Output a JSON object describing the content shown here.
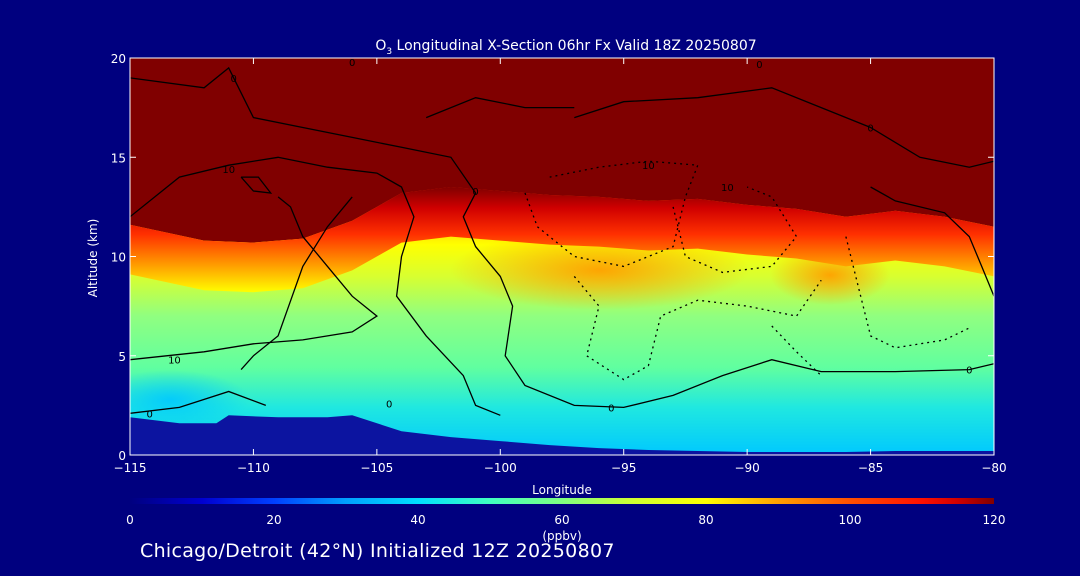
{
  "footer": "Chicago/Detroit (42°N) Initialized 12Z 20250807",
  "colors": {
    "background": "#00007f",
    "terrain": "#0c14a0",
    "contour": "#000000",
    "text": "#ffffff"
  },
  "chart_data": {
    "type": "heatmap",
    "title_prefix": "O",
    "title_subscript": "3",
    "title_rest": " Longitudinal X-Section 06hr  Fx Valid 18Z 20250807",
    "xlabel": "Longitude",
    "ylabel": "Altitude (km)",
    "xlim": [
      -115,
      -80
    ],
    "ylim": [
      0,
      20
    ],
    "xticks": [
      -115,
      -110,
      -105,
      -100,
      -95,
      -90,
      -85,
      -80
    ],
    "xtick_labels": [
      "−115",
      "−110",
      "−105",
      "−100",
      "−95",
      "−90",
      "−85",
      "−80"
    ],
    "yticks": [
      0,
      5,
      10,
      15,
      20
    ],
    "ytick_labels": [
      "0",
      "5",
      "10",
      "15",
      "20"
    ],
    "colorbar": {
      "label": "(ppbv)",
      "min": 0,
      "max": 120,
      "ticks": [
        0,
        20,
        40,
        60,
        80,
        100,
        120
      ],
      "tick_labels": [
        "0",
        "20",
        "40",
        "60",
        "80",
        "100",
        "120"
      ],
      "stops": [
        {
          "value": 0,
          "color": "#00007f"
        },
        {
          "value": 10,
          "color": "#0000d0"
        },
        {
          "value": 20,
          "color": "#0040ff"
        },
        {
          "value": 30,
          "color": "#00a0ff"
        },
        {
          "value": 40,
          "color": "#00e0ff"
        },
        {
          "value": 50,
          "color": "#40ffc0"
        },
        {
          "value": 60,
          "color": "#80ff80"
        },
        {
          "value": 70,
          "color": "#d0ff30"
        },
        {
          "value": 80,
          "color": "#ffff00"
        },
        {
          "value": 90,
          "color": "#ffa000"
        },
        {
          "value": 100,
          "color": "#ff5000"
        },
        {
          "value": 110,
          "color": "#ff1000"
        },
        {
          "value": 115,
          "color": "#d00000"
        },
        {
          "value": 120,
          "color": "#800000"
        }
      ]
    },
    "tropopause_km": [
      [
        -115,
        11.6
      ],
      [
        -112,
        10.8
      ],
      [
        -110,
        10.7
      ],
      [
        -108,
        10.9
      ],
      [
        -106,
        11.8
      ],
      [
        -104,
        13.2
      ],
      [
        -102,
        13.5
      ],
      [
        -100,
        13.3
      ],
      [
        -98,
        13.1
      ],
      [
        -96,
        13.0
      ],
      [
        -94,
        12.8
      ],
      [
        -92,
        12.9
      ],
      [
        -90,
        12.6
      ],
      [
        -88,
        12.4
      ],
      [
        -86,
        12.0
      ],
      [
        -84,
        12.3
      ],
      [
        -82,
        12.0
      ],
      [
        -80,
        11.5
      ]
    ],
    "terrain_km": [
      [
        -115,
        1.9
      ],
      [
        -113,
        1.6
      ],
      [
        -111.5,
        1.6
      ],
      [
        -111,
        2.0
      ],
      [
        -109,
        1.9
      ],
      [
        -107,
        1.9
      ],
      [
        -106,
        2.0
      ],
      [
        -104,
        1.2
      ],
      [
        -102,
        0.9
      ],
      [
        -100,
        0.7
      ],
      [
        -98,
        0.5
      ],
      [
        -96,
        0.35
      ],
      [
        -94,
        0.25
      ],
      [
        -92,
        0.2
      ],
      [
        -90,
        0.15
      ],
      [
        -88,
        0.15
      ],
      [
        -86,
        0.15
      ],
      [
        -84,
        0.2
      ],
      [
        -82,
        0.2
      ],
      [
        -80,
        0.2
      ]
    ],
    "contour_labels": [
      {
        "text": "10",
        "lon": -113.2,
        "alt": 4.8
      },
      {
        "text": "0",
        "lon": -114.2,
        "alt": 2.1
      },
      {
        "text": "10",
        "lon": -111,
        "alt": 14.4
      },
      {
        "text": "0",
        "lon": -95.5,
        "alt": 2.4
      },
      {
        "text": "10",
        "lon": -94,
        "alt": 14.6
      },
      {
        "text": "10",
        "lon": -90.8,
        "alt": 13.5
      },
      {
        "text": "0",
        "lon": -85,
        "alt": 16.5
      },
      {
        "text": "0",
        "lon": -81,
        "alt": 4.3
      },
      {
        "text": "0",
        "lon": -89.5,
        "alt": 19.7
      },
      {
        "text": "0",
        "lon": -106,
        "alt": 19.8
      },
      {
        "text": "0",
        "lon": -110.8,
        "alt": 19.0
      },
      {
        "text": "0",
        "lon": -104.5,
        "alt": 2.6
      },
      {
        "text": "0",
        "lon": -101,
        "alt": 13.3
      }
    ]
  }
}
